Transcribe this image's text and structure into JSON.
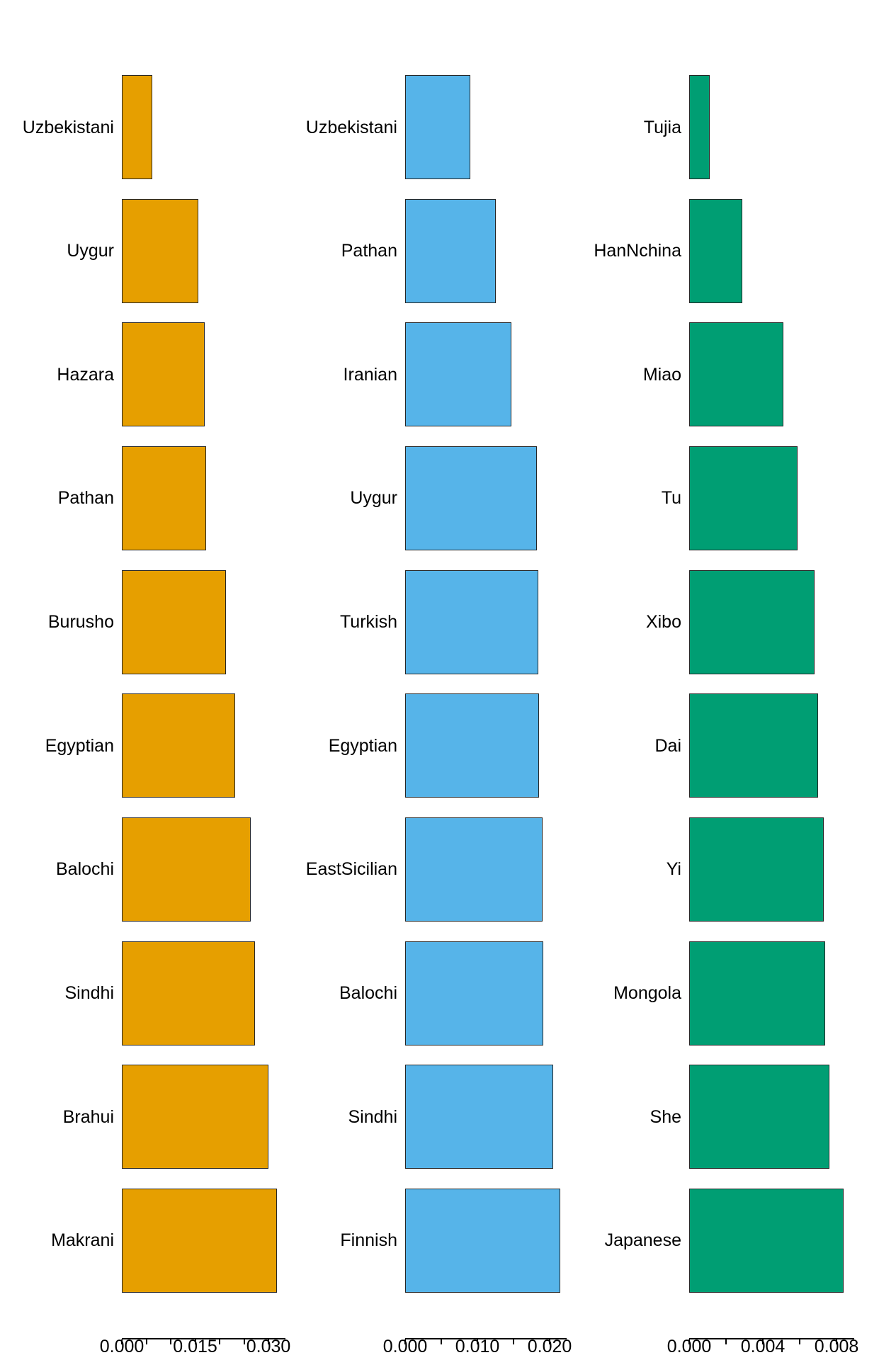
{
  "chart_data": {
    "type": "bar",
    "orientation": "horizontal",
    "title": "",
    "grid": false,
    "legend": null,
    "panels": [
      {
        "name": "panel-orange",
        "bar_color": "#E69F00",
        "categories": [
          "Uzbekistani",
          "Uygur",
          "Hazara",
          "Pathan",
          "Burusho",
          "Egyptian",
          "Balochi",
          "Sindhi",
          "Brahui",
          "Makrani"
        ],
        "values": [
          0.0062,
          0.0157,
          0.017,
          0.0172,
          0.0213,
          0.0232,
          0.0264,
          0.0272,
          0.03,
          0.0317
        ],
        "x_axis": {
          "tick_labels": [
            "0.000",
            "0.015",
            "0.030"
          ],
          "tick_values": [
            0.0,
            0.015,
            0.03
          ],
          "minor_step": 0.005,
          "xlim": [
            0,
            0.0335
          ]
        }
      },
      {
        "name": "panel-blue",
        "bar_color": "#56B4E9",
        "categories": [
          "Uzbekistani",
          "Pathan",
          "Iranian",
          "Uygur",
          "Turkish",
          "Egyptian",
          "EastSicilian",
          "Balochi",
          "Sindhi",
          "Finnish"
        ],
        "values": [
          0.009,
          0.0125,
          0.0147,
          0.0182,
          0.0184,
          0.0185,
          0.019,
          0.0191,
          0.0205,
          0.0215
        ],
        "x_axis": {
          "tick_labels": [
            "0.000",
            "0.010",
            "0.020"
          ],
          "tick_values": [
            0.0,
            0.01,
            0.02
          ],
          "minor_step": 0.005,
          "xlim": [
            0,
            0.0224
          ]
        }
      },
      {
        "name": "panel-green",
        "bar_color": "#009E73",
        "categories": [
          "Tujia",
          "HanNchina",
          "Miao",
          "Tu",
          "Xibo",
          "Dai",
          "Yi",
          "Mongola",
          "She",
          "Japanese"
        ],
        "values": [
          0.0011,
          0.0029,
          0.0051,
          0.0059,
          0.0068,
          0.007,
          0.0073,
          0.0074,
          0.0076,
          0.0084
        ],
        "x_axis": {
          "tick_labels": [
            "0.000",
            "0.004",
            "0.008"
          ],
          "tick_values": [
            0.0,
            0.004,
            0.008
          ],
          "minor_step": 0.002,
          "xlim": [
            0,
            0.009
          ]
        }
      }
    ],
    "colors": {
      "bar_border": "#262626",
      "axis": "#000000",
      "text": "#000000",
      "background": "#ffffff"
    }
  }
}
